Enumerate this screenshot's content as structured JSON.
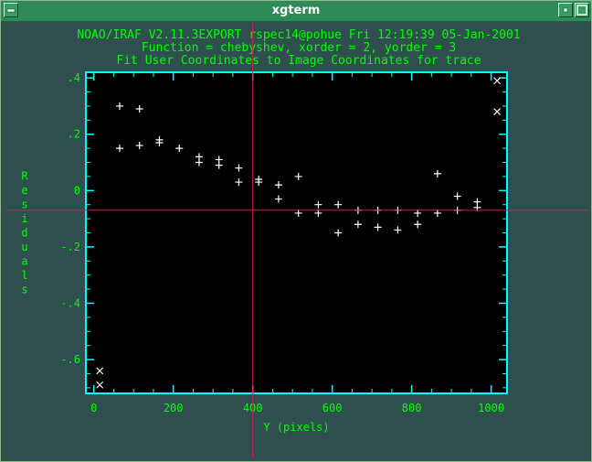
{
  "window": {
    "title": "xgterm",
    "buttons": [
      "menu",
      "minimize",
      "maximize"
    ]
  },
  "graph": {
    "header": [
      "NOAO/IRAF V2.11.3EXPORT rspec14@pohue Fri 12:19:39 05-Jan-2001",
      "Function = chebyshev, xorder = 2, yorder = 3",
      "Fit User Coordinates to Image Coordinates for trace"
    ],
    "colors": {
      "background": "#2f4f4f",
      "text": "#00ff00",
      "frame": "#00ffff",
      "plot_bg": "#000000",
      "cursor": "#cc2244",
      "markers": "#ffffff"
    },
    "cursor": {
      "x": 400,
      "y": -0.07
    }
  },
  "chart_data": {
    "type": "scatter",
    "xlabel": "Y (pixels)",
    "ylabel": "Residuals",
    "xlim": [
      -20,
      1040
    ],
    "ylim": [
      -0.72,
      0.42
    ],
    "xticks": [
      0,
      200,
      400,
      600,
      800,
      1000
    ],
    "xtick_labels": [
      "0",
      "200",
      "400",
      "600",
      "800",
      "1000"
    ],
    "yticks": [
      0.4,
      0.2,
      0,
      -0.2,
      -0.4,
      -0.6
    ],
    "ytick_labels": [
      ".4",
      ".2",
      "0",
      "-.2",
      "-.4",
      "-.6"
    ],
    "series": [
      {
        "marker": "plus",
        "points": [
          [
            65,
            0.3
          ],
          [
            115,
            0.29
          ],
          [
            165,
            0.18
          ],
          [
            265,
            0.12
          ],
          [
            315,
            0.11
          ],
          [
            365,
            0.08
          ],
          [
            415,
            0.04
          ],
          [
            465,
            0.02
          ],
          [
            515,
            0.05
          ],
          [
            565,
            -0.05
          ],
          [
            615,
            -0.05
          ],
          [
            665,
            -0.07
          ],
          [
            715,
            -0.07
          ],
          [
            765,
            -0.07
          ],
          [
            815,
            -0.08
          ],
          [
            865,
            0.06
          ],
          [
            915,
            -0.02
          ],
          [
            965,
            -0.04
          ],
          [
            65,
            0.15
          ],
          [
            115,
            0.16
          ],
          [
            165,
            0.17
          ],
          [
            215,
            0.15
          ],
          [
            265,
            0.1
          ],
          [
            315,
            0.09
          ],
          [
            365,
            0.03
          ],
          [
            415,
            0.03
          ],
          [
            465,
            -0.03
          ],
          [
            515,
            -0.08
          ],
          [
            565,
            -0.08
          ],
          [
            615,
            -0.15
          ],
          [
            665,
            -0.12
          ],
          [
            715,
            -0.13
          ],
          [
            765,
            -0.14
          ],
          [
            815,
            -0.12
          ],
          [
            865,
            -0.08
          ],
          [
            915,
            -0.07
          ],
          [
            965,
            -0.06
          ]
        ]
      },
      {
        "marker": "cross",
        "points": [
          [
            15,
            -0.64
          ],
          [
            15,
            -0.69
          ],
          [
            1015,
            0.39
          ],
          [
            1015,
            0.28
          ]
        ]
      }
    ]
  }
}
